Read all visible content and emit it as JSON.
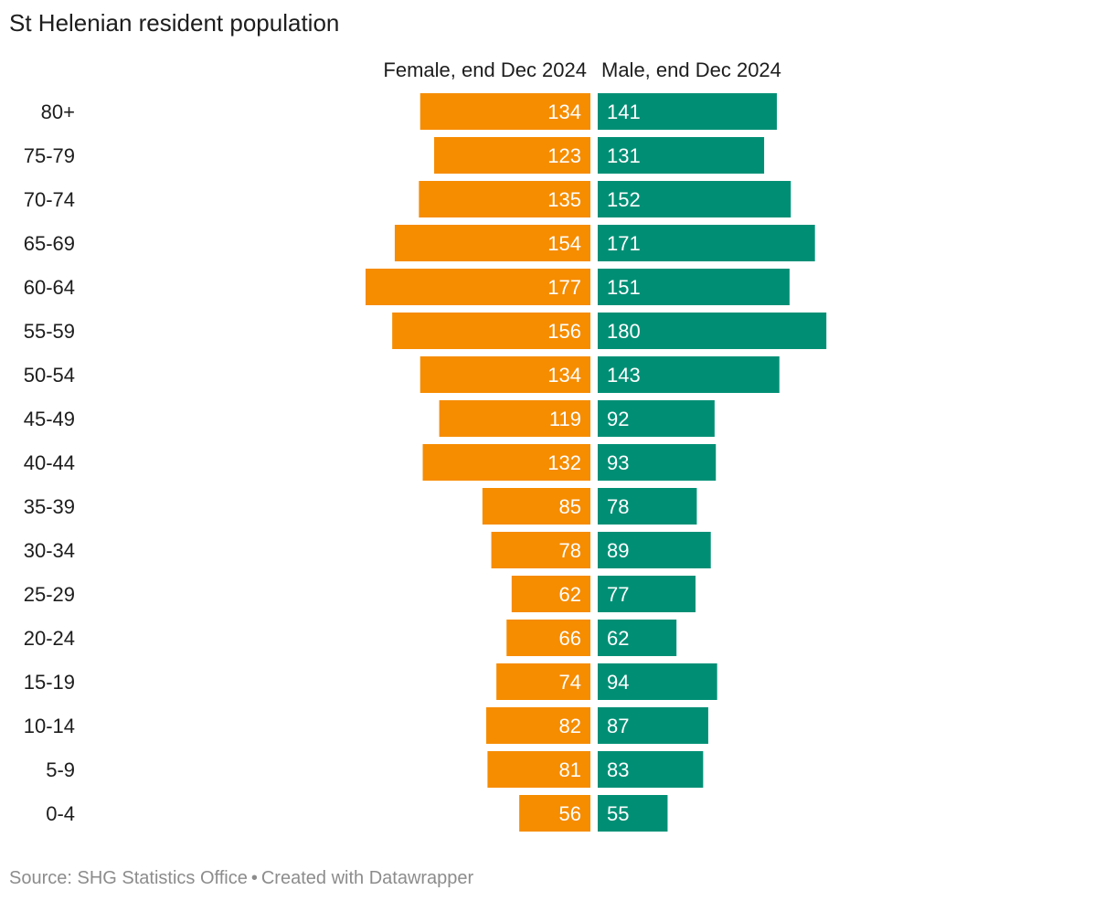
{
  "title": "St Helenian resident population",
  "source": {
    "label": "Source: SHG Statistics Office",
    "separator": "•",
    "credit": "Created with Datawrapper"
  },
  "colors": {
    "female": "#f68c00",
    "male": "#008f75",
    "label": "#ffffff"
  },
  "chart_data": {
    "type": "bar",
    "orientation": "horizontal-diverging",
    "title": "St Helenian resident population",
    "categories": [
      "80+",
      "75-79",
      "70-74",
      "65-69",
      "60-64",
      "55-59",
      "50-54",
      "45-49",
      "40-44",
      "35-39",
      "30-34",
      "25-29",
      "20-24",
      "15-19",
      "10-14",
      "5-9",
      "0-4"
    ],
    "series": [
      {
        "name": "Female, end Dec 2024",
        "side": "left",
        "values": [
          134,
          123,
          135,
          154,
          177,
          156,
          134,
          119,
          132,
          85,
          78,
          62,
          66,
          74,
          82,
          81,
          56
        ]
      },
      {
        "name": "Male, end Dec 2024",
        "side": "right",
        "values": [
          141,
          131,
          152,
          171,
          151,
          180,
          143,
          92,
          93,
          78,
          89,
          77,
          62,
          94,
          87,
          83,
          55
        ]
      }
    ],
    "xlim": [
      0,
      180
    ],
    "grid": false,
    "legend": "top"
  }
}
